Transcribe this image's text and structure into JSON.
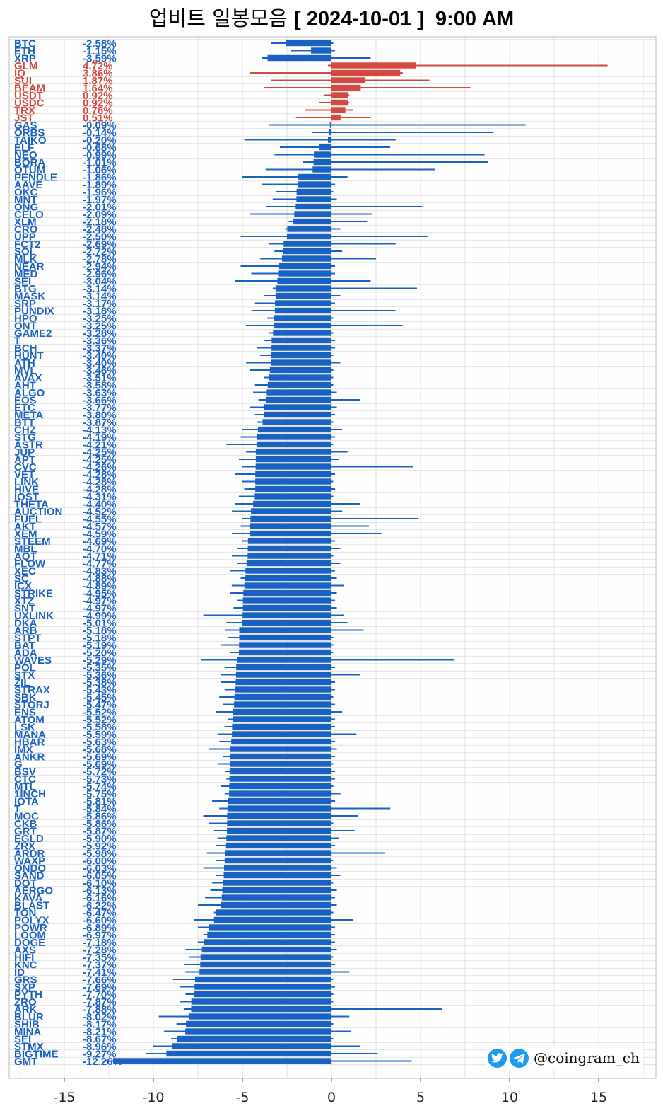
{
  "title": {
    "korean": "업비트 일봉모음",
    "date_part": "[ 2024-10-01 ]  9:00 AM"
  },
  "watermark": {
    "handle": "@coingram_ch",
    "icons": [
      "twitter-bird-icon",
      "telegram-plane-icon"
    ]
  },
  "colors": {
    "negative": "#1a62c1",
    "positive": "#d1493f",
    "grid": "#d9d9d9",
    "watermark_icon": "#1d9bf0"
  },
  "chart_data": {
    "type": "bar",
    "orientation": "horizontal",
    "title": "업비트 일봉모음 [ 2024-10-01 ]  9:00 AM",
    "xlim": [
      -18.5,
      18.5
    ],
    "x_ticks": [
      -15,
      -10,
      -5,
      0,
      5,
      10,
      15
    ],
    "grid": true,
    "labels_format": "percent",
    "rows": [
      {
        "name": "BTC",
        "change": -2.58,
        "low": -3.4,
        "high": 0.1
      },
      {
        "name": "ETH",
        "change": -1.15,
        "low": -2.3,
        "high": 0.2
      },
      {
        "name": "XRP",
        "change": -3.59,
        "low": -3.9,
        "high": 2.2
      },
      {
        "name": "GLM",
        "change": 4.72,
        "low": -0.2,
        "high": 15.5
      },
      {
        "name": "IQ",
        "change": 3.86,
        "low": -4.6,
        "high": 4.0
      },
      {
        "name": "SUI",
        "change": 1.87,
        "low": -3.4,
        "high": 5.5
      },
      {
        "name": "BEAM",
        "change": 1.64,
        "low": -3.8,
        "high": 7.8
      },
      {
        "name": "USDT",
        "change": 0.92,
        "low": -0.4,
        "high": 1.0
      },
      {
        "name": "USDC",
        "change": 0.92,
        "low": -0.7,
        "high": 1.0
      },
      {
        "name": "TRX",
        "change": 0.78,
        "low": -1.5,
        "high": 1.2
      },
      {
        "name": "JST",
        "change": 0.51,
        "low": -2.0,
        "high": 2.2
      },
      {
        "name": "GAS",
        "change": -0.09,
        "low": -3.5,
        "high": 10.9
      },
      {
        "name": "ORBS",
        "change": -0.14,
        "low": -1.1,
        "high": 9.1
      },
      {
        "name": "TAIKO",
        "change": -0.2,
        "low": -4.9,
        "high": 3.6
      },
      {
        "name": "ELF",
        "change": -0.68,
        "low": -2.9,
        "high": 3.3
      },
      {
        "name": "NEO",
        "change": -0.99,
        "low": -3.2,
        "high": 8.6
      },
      {
        "name": "BORA",
        "change": -1.01,
        "low": -1.6,
        "high": 8.8
      },
      {
        "name": "QTUM",
        "change": -1.06,
        "low": -3.7,
        "high": 5.8
      },
      {
        "name": "PENDLE",
        "change": -1.86,
        "low": -5.0,
        "high": 0.9
      },
      {
        "name": "AAVE",
        "change": -1.89,
        "low": -3.9,
        "high": 0.2
      },
      {
        "name": "OKC",
        "change": -1.96,
        "low": -3.1,
        "high": 0.1
      },
      {
        "name": "MNT",
        "change": -1.97,
        "low": -3.3,
        "high": 0.3
      },
      {
        "name": "ONG",
        "change": -2.01,
        "low": -3.7,
        "high": 5.1
      },
      {
        "name": "CELO",
        "change": -2.09,
        "low": -4.6,
        "high": 2.3
      },
      {
        "name": "XLM",
        "change": -2.18,
        "low": -2.4,
        "high": 2.0
      },
      {
        "name": "CRO",
        "change": -2.48,
        "low": -2.6,
        "high": 0.5
      },
      {
        "name": "UPP",
        "change": -2.5,
        "low": -5.1,
        "high": 5.4
      },
      {
        "name": "FCT2",
        "change": -2.69,
        "low": -3.5,
        "high": 3.6
      },
      {
        "name": "SOL",
        "change": -2.72,
        "low": -3.2,
        "high": 0.6
      },
      {
        "name": "MLK",
        "change": -2.78,
        "low": -4.0,
        "high": 2.5
      },
      {
        "name": "NEAR",
        "change": -2.94,
        "low": -5.1,
        "high": 0.2
      },
      {
        "name": "MED",
        "change": -2.96,
        "low": -4.5,
        "high": 0.2
      },
      {
        "name": "SEI",
        "change": -3.04,
        "low": -5.4,
        "high": 2.2
      },
      {
        "name": "BTG",
        "change": -3.14,
        "low": -3.3,
        "high": 4.8
      },
      {
        "name": "MASK",
        "change": -3.14,
        "low": -3.8,
        "high": 0.5
      },
      {
        "name": "SRP",
        "change": -3.17,
        "low": -4.3,
        "high": 0.2
      },
      {
        "name": "PUNDIX",
        "change": -3.18,
        "low": -4.5,
        "high": 3.6
      },
      {
        "name": "HPO",
        "change": -3.25,
        "low": -3.6,
        "high": 0.1
      },
      {
        "name": "ONT",
        "change": -3.25,
        "low": -4.8,
        "high": 4.0
      },
      {
        "name": "GAME2",
        "change": -3.28,
        "low": -3.5,
        "high": 0.1
      },
      {
        "name": "T",
        "change": -3.36,
        "low": -3.8,
        "high": 0.2
      },
      {
        "name": "BCH",
        "change": -3.37,
        "low": -4.2,
        "high": 0.2
      },
      {
        "name": "HUNT",
        "change": -3.4,
        "low": -4.0,
        "high": 0.1
      },
      {
        "name": "ATH",
        "change": -3.4,
        "low": -4.8,
        "high": 0.5
      },
      {
        "name": "MVL",
        "change": -3.46,
        "low": -4.6,
        "high": 0.1
      },
      {
        "name": "AVAX",
        "change": -3.51,
        "low": -3.8,
        "high": 0.1
      },
      {
        "name": "AHT",
        "change": -3.58,
        "low": -4.3,
        "high": 0.1
      },
      {
        "name": "ALGO",
        "change": -3.63,
        "low": -4.4,
        "high": 0.3
      },
      {
        "name": "EOS",
        "change": -3.66,
        "low": -4.1,
        "high": 1.6
      },
      {
        "name": "ETC",
        "change": -3.77,
        "low": -4.6,
        "high": 0.3
      },
      {
        "name": "META",
        "change": -3.8,
        "low": -4.3,
        "high": 0.2
      },
      {
        "name": "BTT",
        "change": -3.87,
        "low": -4.2,
        "high": 0.1
      },
      {
        "name": "CHZ",
        "change": -4.13,
        "low": -5.0,
        "high": 0.6
      },
      {
        "name": "STG",
        "change": -4.19,
        "low": -5.1,
        "high": 0.2
      },
      {
        "name": "ASTR",
        "change": -4.21,
        "low": -5.9,
        "high": 0.1
      },
      {
        "name": "JUP",
        "change": -4.25,
        "low": -4.8,
        "high": 0.9
      },
      {
        "name": "APT",
        "change": -4.25,
        "low": -5.2,
        "high": 0.4
      },
      {
        "name": "CVC",
        "change": -4.26,
        "low": -5.0,
        "high": 4.6
      },
      {
        "name": "VET",
        "change": -4.28,
        "low": -5.4,
        "high": 0.2
      },
      {
        "name": "LINK",
        "change": -4.28,
        "low": -5.0,
        "high": 0.1
      },
      {
        "name": "HIVE",
        "change": -4.28,
        "low": -4.9,
        "high": 0.2
      },
      {
        "name": "IOST",
        "change": -4.31,
        "low": -5.2,
        "high": 0.1
      },
      {
        "name": "THETA",
        "change": -4.4,
        "low": -5.4,
        "high": 1.6
      },
      {
        "name": "AUCTION",
        "change": -4.52,
        "low": -5.6,
        "high": 0.6
      },
      {
        "name": "FUEL",
        "change": -4.55,
        "low": -5.0,
        "high": 4.9
      },
      {
        "name": "AKT",
        "change": -4.57,
        "low": -5.1,
        "high": 2.1
      },
      {
        "name": "XEM",
        "change": -4.59,
        "low": -5.6,
        "high": 2.8
      },
      {
        "name": "STEEM",
        "change": -4.69,
        "low": -5.0,
        "high": 0.2
      },
      {
        "name": "MBL",
        "change": -4.7,
        "low": -5.3,
        "high": 0.5
      },
      {
        "name": "AQT",
        "change": -4.71,
        "low": -5.6,
        "high": 0.1
      },
      {
        "name": "FLOW",
        "change": -4.77,
        "low": -5.3,
        "high": 0.5
      },
      {
        "name": "XEC",
        "change": -4.83,
        "low": -5.7,
        "high": 0.2
      },
      {
        "name": "SC",
        "change": -4.88,
        "low": -5.1,
        "high": 0.3
      },
      {
        "name": "ICX",
        "change": -4.89,
        "low": -5.6,
        "high": 0.7
      },
      {
        "name": "STRIKE",
        "change": -4.95,
        "low": -5.7,
        "high": 0.3
      },
      {
        "name": "XTZ",
        "change": -4.97,
        "low": -5.3,
        "high": 0.2
      },
      {
        "name": "SNT",
        "change": -4.97,
        "low": -5.5,
        "high": 0.3
      },
      {
        "name": "UXLINK",
        "change": -4.99,
        "low": -7.2,
        "high": 0.7
      },
      {
        "name": "DKA",
        "change": -5.01,
        "low": -5.9,
        "high": 0.9
      },
      {
        "name": "ARB",
        "change": -5.18,
        "low": -6.0,
        "high": 1.8
      },
      {
        "name": "STPT",
        "change": -5.18,
        "low": -5.8,
        "high": 0.1
      },
      {
        "name": "BAT",
        "change": -5.19,
        "low": -6.2,
        "high": 0.1
      },
      {
        "name": "ADA",
        "change": -5.2,
        "low": -5.7,
        "high": 0.1
      },
      {
        "name": "WAVES",
        "change": -5.29,
        "low": -7.3,
        "high": 6.9
      },
      {
        "name": "POL",
        "change": -5.35,
        "low": -6.0,
        "high": 0.2
      },
      {
        "name": "STX",
        "change": -5.36,
        "low": -6.2,
        "high": 1.6
      },
      {
        "name": "ZIL",
        "change": -5.38,
        "low": -6.2,
        "high": 0.2
      },
      {
        "name": "STRAX",
        "change": -5.43,
        "low": -6.0,
        "high": 0.2
      },
      {
        "name": "SBK",
        "change": -5.45,
        "low": -6.3,
        "high": 0.1
      },
      {
        "name": "STORJ",
        "change": -5.47,
        "low": -6.1,
        "high": 0.2
      },
      {
        "name": "ENS",
        "change": -5.52,
        "low": -6.5,
        "high": 0.6
      },
      {
        "name": "ATOM",
        "change": -5.52,
        "low": -5.8,
        "high": 0.2
      },
      {
        "name": "LSK",
        "change": -5.58,
        "low": -6.0,
        "high": 0.2
      },
      {
        "name": "MANA",
        "change": -5.59,
        "low": -6.4,
        "high": 1.4
      },
      {
        "name": "HBAR",
        "change": -5.63,
        "low": -6.3,
        "high": 0.2
      },
      {
        "name": "IMX",
        "change": -5.68,
        "low": -6.9,
        "high": 0.3
      },
      {
        "name": "ANKR",
        "change": -5.69,
        "low": -6.1,
        "high": 0.2
      },
      {
        "name": "G",
        "change": -5.69,
        "low": -6.4,
        "high": 0.1
      },
      {
        "name": "BSV",
        "change": -5.72,
        "low": -6.0,
        "high": 0.2
      },
      {
        "name": "CTC",
        "change": -5.73,
        "low": -5.9,
        "high": 0.2
      },
      {
        "name": "MTL",
        "change": -5.74,
        "low": -6.2,
        "high": 0.1
      },
      {
        "name": "1INCH",
        "change": -5.75,
        "low": -6.0,
        "high": 0.5
      },
      {
        "name": "IOTA",
        "change": -5.81,
        "low": -6.7,
        "high": 0.2
      },
      {
        "name": "T2",
        "displayName": "T",
        "change": -5.84,
        "low": -6.3,
        "high": 3.3
      },
      {
        "name": "MOC",
        "change": -5.86,
        "low": -7.2,
        "high": 1.5
      },
      {
        "name": "CKB",
        "change": -5.86,
        "low": -6.9,
        "high": 0.1
      },
      {
        "name": "GRT",
        "change": -5.87,
        "low": -6.6,
        "high": 1.3
      },
      {
        "name": "EGLD",
        "change": -5.9,
        "low": -6.4,
        "high": 0.4
      },
      {
        "name": "ZRX",
        "change": -5.92,
        "low": -6.5,
        "high": 0.2
      },
      {
        "name": "ARDR",
        "change": -5.98,
        "low": -7.0,
        "high": 3.0
      },
      {
        "name": "WAXP",
        "change": -6.0,
        "low": -6.5,
        "high": 0.1
      },
      {
        "name": "ONDO",
        "change": -6.03,
        "low": -7.2,
        "high": 0.3
      },
      {
        "name": "SAND",
        "change": -6.05,
        "low": -6.5,
        "high": 0.5
      },
      {
        "name": "DOT",
        "change": -6.1,
        "low": -6.7,
        "high": 0.1
      },
      {
        "name": "AERGO",
        "change": -6.13,
        "low": -6.8,
        "high": 0.3
      },
      {
        "name": "KAVA",
        "change": -6.16,
        "low": -7.1,
        "high": 0.2
      },
      {
        "name": "BLAST",
        "change": -6.22,
        "low": -7.5,
        "high": 0.3
      },
      {
        "name": "TON",
        "change": -6.47,
        "low": -6.6,
        "high": 0.1
      },
      {
        "name": "POLYX",
        "change": -6.6,
        "low": -7.7,
        "high": 1.2
      },
      {
        "name": "POWR",
        "change": -6.89,
        "low": -7.5,
        "high": 0.2
      },
      {
        "name": "LOOM",
        "change": -6.97,
        "low": -7.2,
        "high": 0.2
      },
      {
        "name": "DOGE",
        "change": -7.18,
        "low": -7.5,
        "high": 0.2
      },
      {
        "name": "AXS",
        "change": -7.28,
        "low": -8.2,
        "high": 0.3
      },
      {
        "name": "HIFI",
        "change": -7.35,
        "low": -8.0,
        "high": 0.1
      },
      {
        "name": "KNC",
        "change": -7.37,
        "low": -8.3,
        "high": 0.2
      },
      {
        "name": "ID",
        "change": -7.41,
        "low": -8.2,
        "high": 1.0
      },
      {
        "name": "GRS",
        "change": -7.66,
        "low": -8.9,
        "high": 0.1
      },
      {
        "name": "SXP",
        "change": -7.69,
        "low": -8.5,
        "high": 0.2
      },
      {
        "name": "PYTH",
        "change": -7.7,
        "low": -8.2,
        "high": 0.1
      },
      {
        "name": "ZRO",
        "change": -7.87,
        "low": -8.5,
        "high": 0.1
      },
      {
        "name": "ARK",
        "change": -7.88,
        "low": -8.3,
        "high": 6.2
      },
      {
        "name": "BLUR",
        "change": -8.02,
        "low": -9.7,
        "high": 1.0
      },
      {
        "name": "SHIB",
        "change": -8.17,
        "low": -8.7,
        "high": 0.1
      },
      {
        "name": "MINA",
        "change": -8.21,
        "low": -9.4,
        "high": 1.1
      },
      {
        "name": "SEI2",
        "displayName": "SEI",
        "change": -8.67,
        "low": -9.0,
        "high": 0.1
      },
      {
        "name": "STMX",
        "change": -8.96,
        "low": -10.0,
        "high": 1.6
      },
      {
        "name": "BIGTIME",
        "change": -9.27,
        "low": -10.4,
        "high": 2.6
      },
      {
        "name": "GMT",
        "change": -12.26,
        "low": -12.8,
        "high": 4.5
      }
    ]
  }
}
